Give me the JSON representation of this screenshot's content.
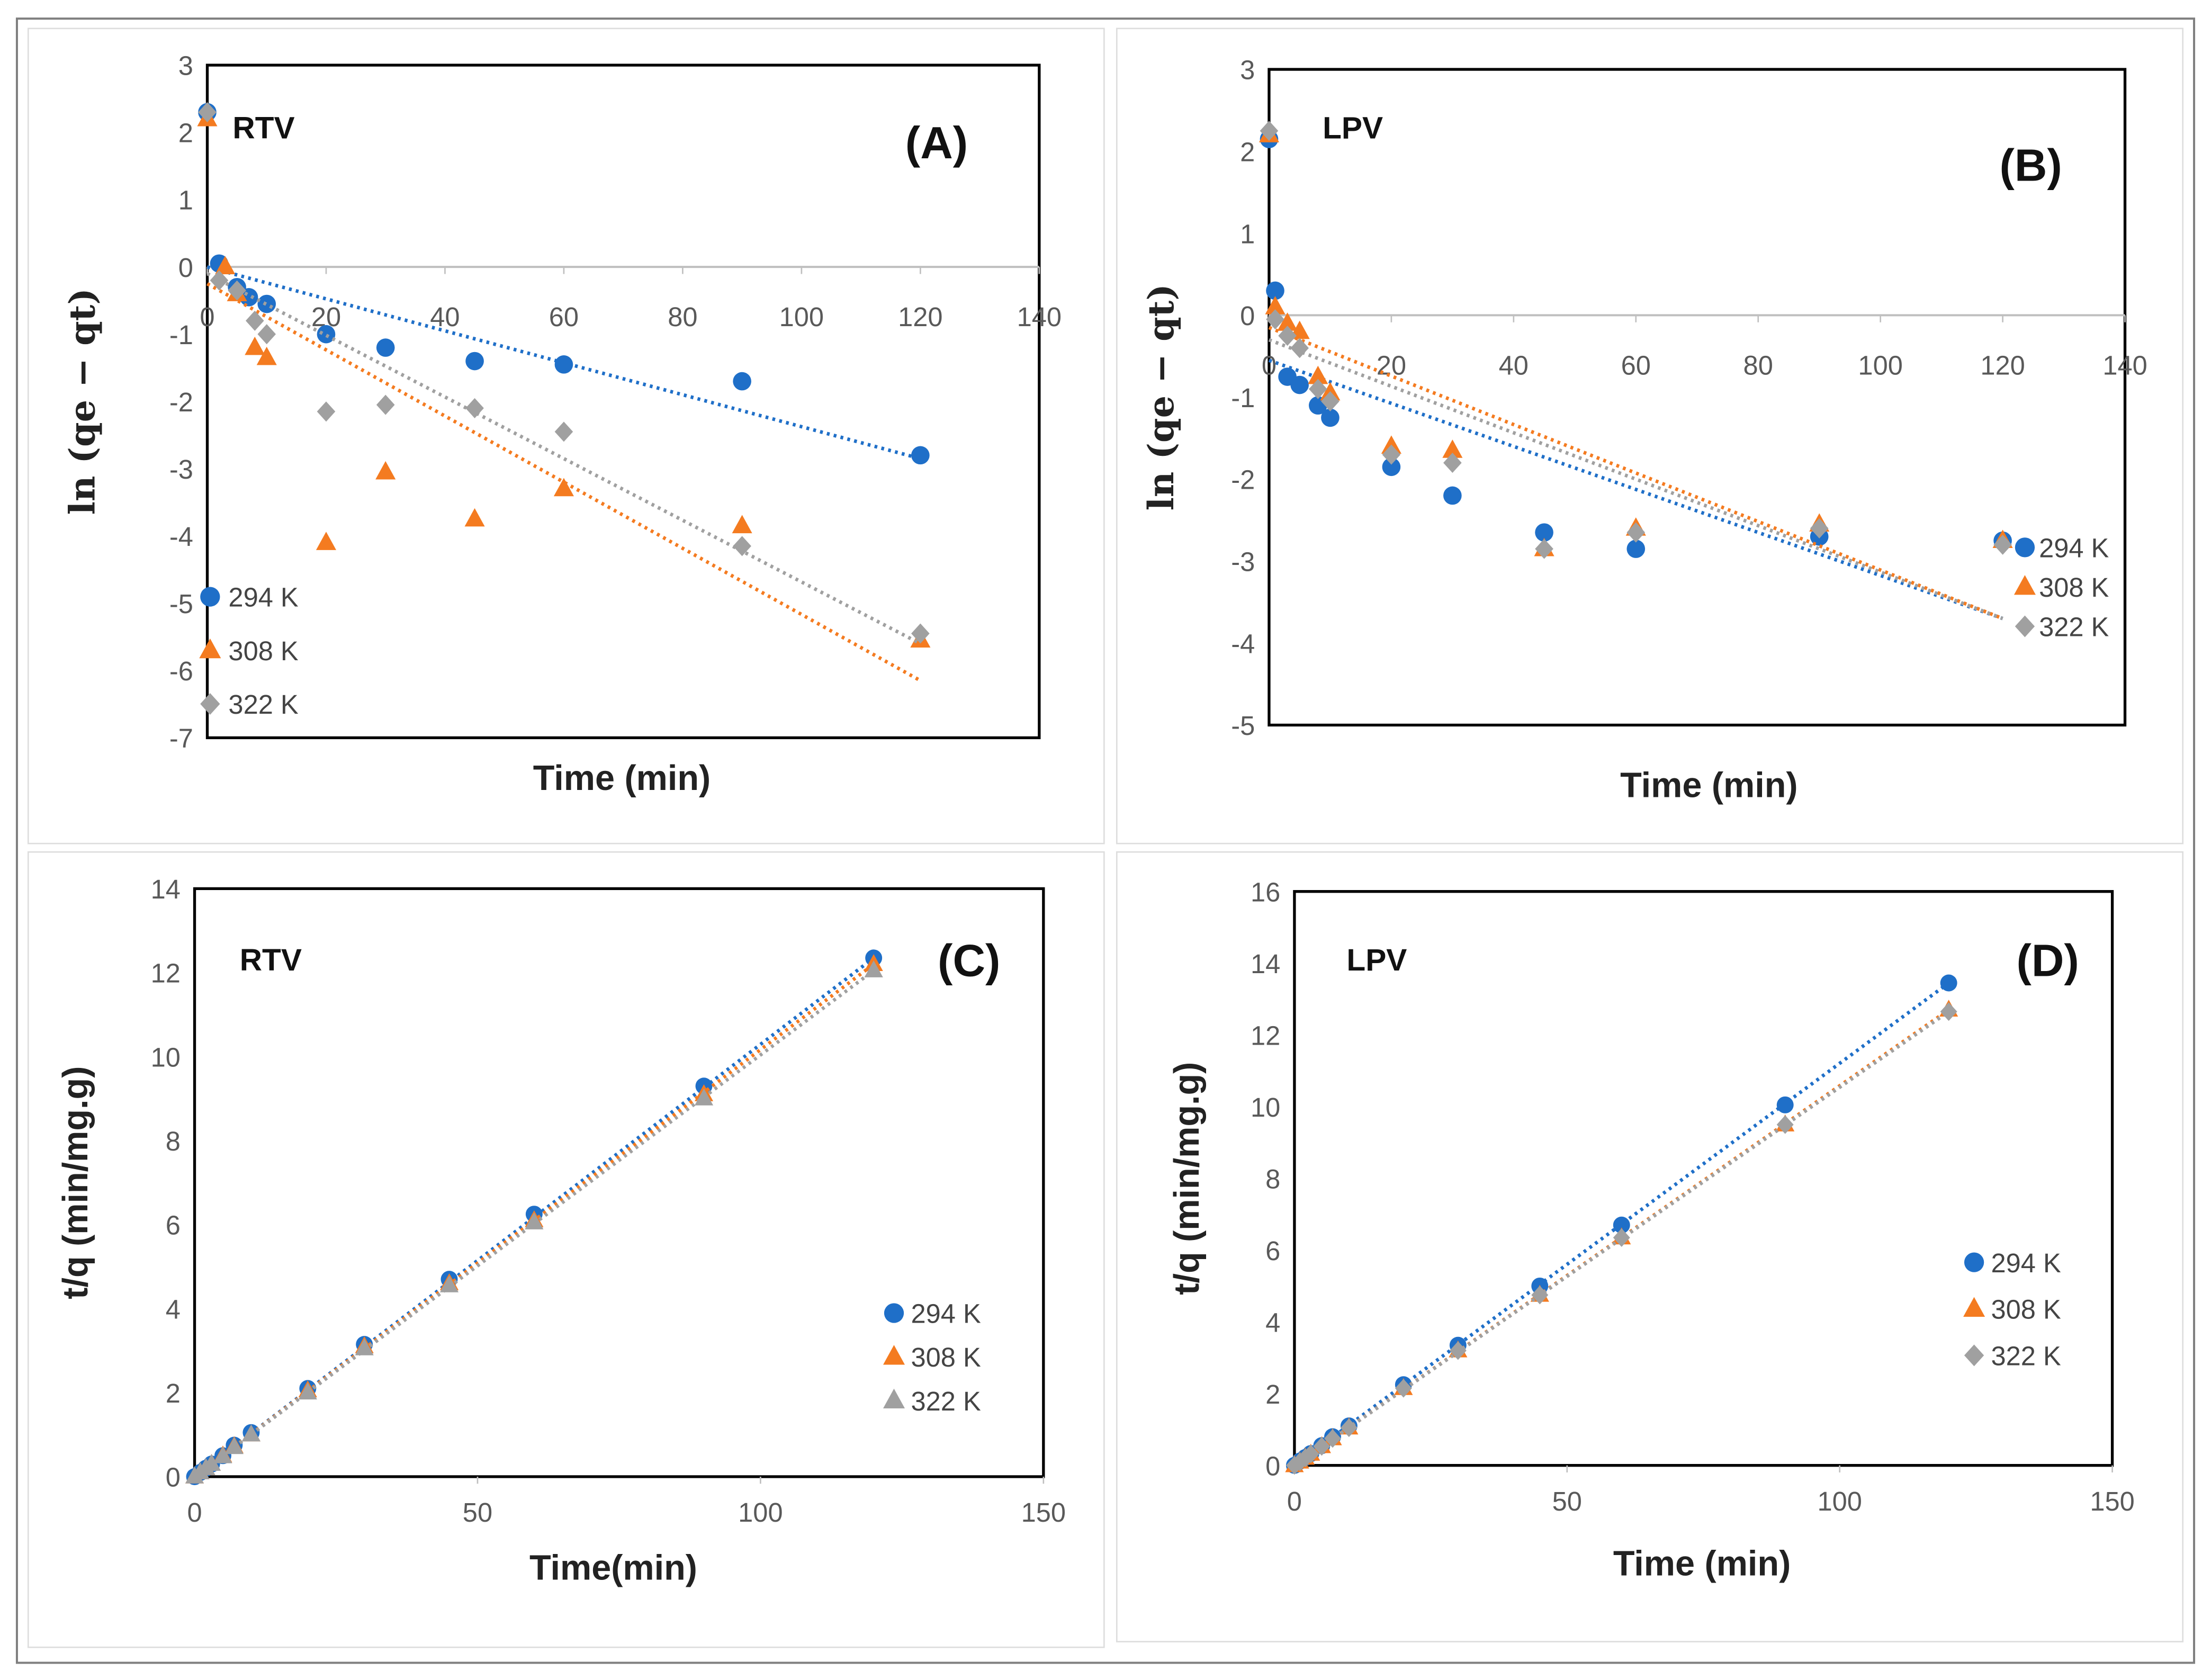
{
  "colors": {
    "294 K": "#1f6fc8",
    "308 K": "#f47b20",
    "322 K": "#a0a0a0"
  },
  "chart_data": [
    {
      "type": "scatter",
      "panel": "(A)",
      "tag": "RTV",
      "title": "",
      "xlabel": "Time (min)",
      "ylabel": "ln (qe − qt)",
      "xlim": [
        0,
        140
      ],
      "ylim": [
        -7,
        3
      ],
      "xticks": [
        0,
        20,
        40,
        60,
        80,
        100,
        120,
        140
      ],
      "yticks": [
        -7,
        -6,
        -5,
        -4,
        -3,
        -2,
        -1,
        0,
        1,
        2,
        3
      ],
      "legend": "bottom-left",
      "series": [
        {
          "name": "294 K",
          "marker": "circle",
          "x": [
            0,
            2,
            5,
            7,
            10,
            20,
            30,
            45,
            60,
            90,
            120
          ],
          "y": [
            2.3,
            0.05,
            -0.3,
            -0.45,
            -0.55,
            -1.0,
            -1.2,
            -1.4,
            -1.45,
            -1.7,
            -2.8
          ],
          "trend": [
            [
              0,
              0
            ],
            [
              120,
              -2.85
            ]
          ]
        },
        {
          "name": "308 K",
          "marker": "triangle",
          "x": [
            0,
            3,
            5,
            8,
            10,
            20,
            30,
            45,
            60,
            90,
            120
          ],
          "y": [
            2.2,
            0.0,
            -0.4,
            -1.2,
            -1.35,
            -4.1,
            -3.05,
            -3.75,
            -3.3,
            -3.85,
            -5.55
          ],
          "trend": [
            [
              0,
              -0.25
            ],
            [
              120,
              -6.15
            ]
          ]
        },
        {
          "name": "322 K",
          "marker": "diamond",
          "x": [
            0,
            2,
            5,
            8,
            10,
            20,
            30,
            45,
            60,
            90,
            120
          ],
          "y": [
            2.3,
            -0.2,
            -0.35,
            -0.8,
            -1.0,
            -2.15,
            -2.05,
            -2.1,
            -2.45,
            -4.15,
            -5.45
          ],
          "trend": [
            [
              0,
              -0.1
            ],
            [
              120,
              -5.6
            ]
          ]
        }
      ]
    },
    {
      "type": "scatter",
      "panel": "(B)",
      "tag": "LPV",
      "title": "",
      "xlabel": "Time (min)",
      "ylabel": "ln (qe − qt)",
      "xlim": [
        0,
        140
      ],
      "ylim": [
        -5,
        3
      ],
      "xticks": [
        0,
        20,
        40,
        60,
        80,
        100,
        120,
        140
      ],
      "yticks": [
        -5,
        -4,
        -3,
        -2,
        -1,
        0,
        1,
        2,
        3
      ],
      "legend": "right",
      "series": [
        {
          "name": "294 K",
          "marker": "circle",
          "x": [
            0,
            1,
            3,
            5,
            8,
            10,
            20,
            30,
            45,
            60,
            90,
            120
          ],
          "y": [
            2.15,
            0.3,
            -0.75,
            -0.85,
            -1.1,
            -1.25,
            -1.85,
            -2.2,
            -2.65,
            -2.85,
            -2.7,
            -2.75
          ],
          "trend": [
            [
              0,
              -0.55
            ],
            [
              120,
              -3.7
            ]
          ]
        },
        {
          "name": "308 K",
          "marker": "triangle",
          "x": [
            0,
            1,
            3,
            5,
            8,
            10,
            20,
            30,
            45,
            60,
            90,
            120
          ],
          "y": [
            2.2,
            0.1,
            -0.1,
            -0.2,
            -0.75,
            -0.95,
            -1.6,
            -1.65,
            -2.85,
            -2.6,
            -2.55,
            -2.75
          ],
          "trend": [
            [
              0,
              -0.15
            ],
            [
              120,
              -3.7
            ]
          ]
        },
        {
          "name": "322 K",
          "marker": "diamond",
          "x": [
            0,
            1,
            3,
            5,
            8,
            10,
            20,
            30,
            45,
            60,
            90,
            120
          ],
          "y": [
            2.25,
            -0.05,
            -0.25,
            -0.4,
            -0.9,
            -1.05,
            -1.7,
            -1.8,
            -2.85,
            -2.65,
            -2.6,
            -2.8
          ],
          "trend": [
            [
              0,
              -0.3
            ],
            [
              120,
              -3.7
            ]
          ]
        }
      ]
    },
    {
      "type": "scatter",
      "panel": "(C)",
      "tag": "RTV",
      "title": "",
      "xlabel": "Time(min)",
      "ylabel": "t/q (min/mg.g)",
      "xlim": [
        0,
        150
      ],
      "ylim": [
        0,
        14
      ],
      "xticks": [
        0,
        50,
        100,
        150
      ],
      "yticks": [
        0,
        2,
        4,
        6,
        8,
        10,
        12,
        14
      ],
      "legend": "right",
      "series": [
        {
          "name": "294 K",
          "marker": "circle",
          "x": [
            0,
            1,
            2,
            3,
            5,
            7,
            10,
            20,
            30,
            45,
            60,
            90,
            120
          ],
          "y": [
            0,
            0.1,
            0.2,
            0.3,
            0.5,
            0.75,
            1.05,
            2.1,
            3.15,
            4.7,
            6.25,
            9.3,
            12.35
          ],
          "trend": [
            [
              0,
              0
            ],
            [
              120,
              12.35
            ]
          ]
        },
        {
          "name": "308 K",
          "marker": "triangle",
          "x": [
            0,
            1,
            2,
            3,
            5,
            7,
            10,
            20,
            30,
            45,
            60,
            90,
            120
          ],
          "y": [
            0,
            0.1,
            0.2,
            0.3,
            0.5,
            0.72,
            1.0,
            2.05,
            3.1,
            4.6,
            6.1,
            9.1,
            12.2
          ],
          "trend": [
            [
              0,
              0
            ],
            [
              120,
              12.2
            ]
          ]
        },
        {
          "name": "322 K",
          "marker": "triangle",
          "x": [
            0,
            1,
            2,
            3,
            5,
            7,
            10,
            20,
            30,
            45,
            60,
            90,
            120
          ],
          "y": [
            0,
            0.1,
            0.2,
            0.3,
            0.48,
            0.7,
            1.0,
            2.0,
            3.05,
            4.55,
            6.05,
            9.0,
            12.05
          ],
          "trend": [
            [
              0,
              0
            ],
            [
              120,
              12.05
            ]
          ]
        }
      ]
    },
    {
      "type": "scatter",
      "panel": "(D)",
      "tag": "LPV",
      "title": "",
      "xlabel": "Time (min)",
      "ylabel": "t/q (min/mg.g)",
      "xlim": [
        0,
        150
      ],
      "ylim": [
        0,
        16
      ],
      "xticks": [
        0,
        50,
        100,
        150
      ],
      "yticks": [
        0,
        2,
        4,
        6,
        8,
        10,
        12,
        14,
        16
      ],
      "legend": "right",
      "series": [
        {
          "name": "294 K",
          "marker": "circle",
          "x": [
            0,
            1,
            2,
            3,
            5,
            7,
            10,
            20,
            30,
            45,
            60,
            90,
            120
          ],
          "y": [
            0,
            0.12,
            0.22,
            0.33,
            0.55,
            0.8,
            1.1,
            2.25,
            3.35,
            5.0,
            6.7,
            10.05,
            13.45
          ],
          "trend": [
            [
              0,
              0
            ],
            [
              120,
              13.45
            ]
          ]
        },
        {
          "name": "308 K",
          "marker": "triangle",
          "x": [
            0,
            1,
            2,
            3,
            5,
            7,
            10,
            20,
            30,
            45,
            60,
            90,
            120
          ],
          "y": [
            0,
            0.1,
            0.21,
            0.32,
            0.53,
            0.75,
            1.05,
            2.15,
            3.2,
            4.75,
            6.35,
            9.5,
            12.7
          ],
          "trend": [
            [
              0,
              0
            ],
            [
              120,
              12.7
            ]
          ]
        },
        {
          "name": "322 K",
          "marker": "diamond",
          "x": [
            0,
            1,
            2,
            3,
            5,
            7,
            10,
            20,
            30,
            45,
            60,
            90,
            120
          ],
          "y": [
            0,
            0.1,
            0.21,
            0.32,
            0.53,
            0.75,
            1.05,
            2.15,
            3.2,
            4.75,
            6.35,
            9.5,
            12.65
          ],
          "trend": [
            [
              0,
              0
            ],
            [
              120,
              12.65
            ]
          ]
        }
      ]
    }
  ]
}
